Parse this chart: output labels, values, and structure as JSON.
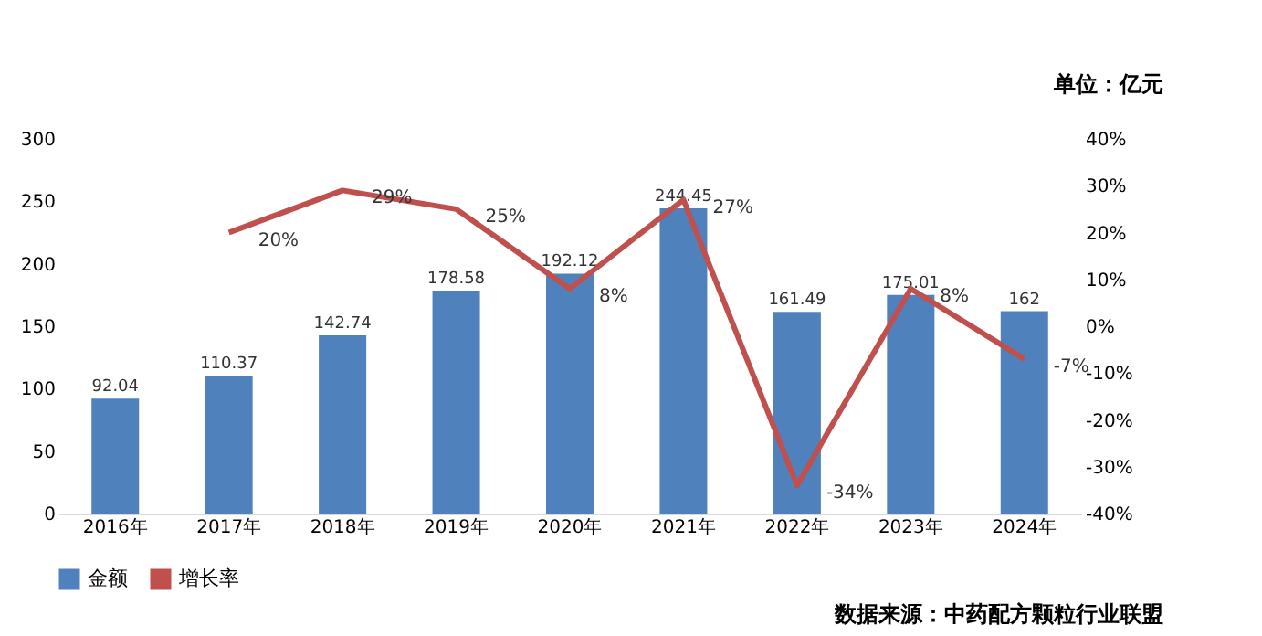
{
  "chart_data": {
    "type": "bar",
    "categories": [
      "2016年",
      "2017年",
      "2018年",
      "2019年",
      "2020年",
      "2021年",
      "2022年",
      "2023年",
      "2024年"
    ],
    "series": [
      {
        "name": "金额",
        "color": "#4f81bd",
        "values": [
          92.04,
          110.37,
          142.74,
          178.58,
          192.12,
          244.45,
          161.49,
          175.01,
          162
        ],
        "value_labels": [
          "92.04",
          "110.37",
          "142.74",
          "178.58",
          "192.12",
          "244.45",
          "161.49",
          "175.01",
          "162"
        ]
      },
      {
        "name": "增长率",
        "type": "line",
        "axis": "y2",
        "color": "#c0504d",
        "values": [
          null,
          20,
          29,
          25,
          8,
          27,
          -34,
          8,
          -7
        ],
        "value_labels": [
          null,
          "20%",
          "29%",
          "25%",
          "8%",
          "27%",
          "-34%",
          "8%",
          "-7%"
        ]
      }
    ],
    "ylim": [
      0,
      300
    ],
    "yticks": [
      0,
      50,
      100,
      150,
      200,
      250,
      300
    ],
    "y2lim": [
      -40,
      40
    ],
    "y2ticks": [
      {
        "value": -40,
        "label": "-40%"
      },
      {
        "value": -30,
        "label": "-30%"
      },
      {
        "value": -20,
        "label": "-20%"
      },
      {
        "value": -10,
        "label": "-10%"
      },
      {
        "value": 0,
        "label": "0%"
      },
      {
        "value": 10,
        "label": "10%"
      },
      {
        "value": 20,
        "label": "20%"
      },
      {
        "value": 30,
        "label": "30%"
      },
      {
        "value": 40,
        "label": "40%"
      }
    ],
    "legend": "bottom",
    "grid": false,
    "marker": "none",
    "line_style": "solid",
    "annotations": [
      "单位：亿元",
      "数据来源：中药配方颗粒行业联盟"
    ]
  }
}
